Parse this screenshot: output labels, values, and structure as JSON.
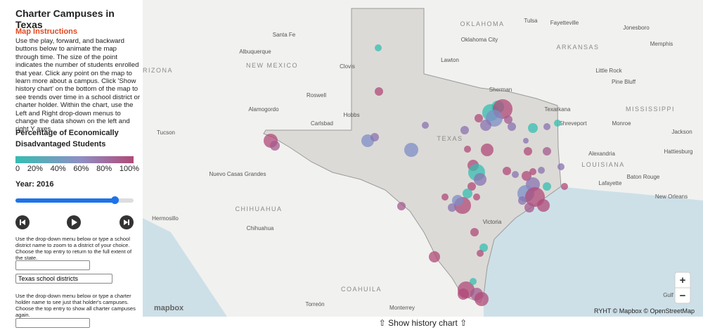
{
  "sidebar": {
    "title": "Charter Campuses in Texas",
    "instructions_heading": "Map Instructions",
    "instructions": "Use the play, forward, and backward buttons below to animate the map through time. The size of the point indicates the number of students enrolled that year. Click any point on the map to learn more about a campus. Click 'Show history chart' on the bottom of the map to see trends over time in a school district or charter holder. Within the chart, use the Left and Right drop-down menus to change the data shown on the left and right Y axes.",
    "legend_title": "Percentage of Economically Disadvantaged Students",
    "legend_labels": [
      "0",
      "20%",
      "40%",
      "60%",
      "80%",
      "100%"
    ],
    "year_label": "Year: 2016",
    "district_help": "Use the drop-down menu below or type a school district name to zoom to a district of your choice. Choose the top entry to return to the full extent of the state.",
    "district_select": "Texas school districts",
    "holder_help": "Use the drop-down menu below or type a charter holder name to see just that holder's campuses. Choose the top entry to show all charter campuses again."
  },
  "map": {
    "state_labels": [
      "OKLAHOMA",
      "NEW MEXICO",
      "ARKANSAS",
      "MISSISSIPPI",
      "LOUISIANA",
      "TEXAS",
      "CHIHUAHUA",
      "COAHUILA",
      "RIZONA"
    ],
    "city_labels": [
      "Santa Fe",
      "Albuquerque",
      "Clovis",
      "Roswell",
      "Alamogordo",
      "Hobbs",
      "Carlsbad",
      "Tucson",
      "Oklahoma City",
      "Lawton",
      "Tulsa",
      "Fayetteville",
      "Jonesboro",
      "Memphis",
      "Little Rock",
      "Pine Bluff",
      "Texarkana",
      "Shreveport",
      "Monroe",
      "Jackson",
      "Alexandria",
      "Hattiesburg",
      "Lafayette",
      "Baton Rouge",
      "New Orleans",
      "Sherman",
      "Nuevo Casas Grandes",
      "Hermosillo",
      "Chihuahua",
      "Victoria",
      "Monterrey",
      "Torreón",
      "Gulf of"
    ],
    "logo": "mapbox",
    "attribution": "RYHT © Mapbox © OpenStreetMap",
    "zoom_in": "+",
    "zoom_out": "−"
  },
  "footer": {
    "history_button": "⇧ Show history chart ⇧"
  }
}
